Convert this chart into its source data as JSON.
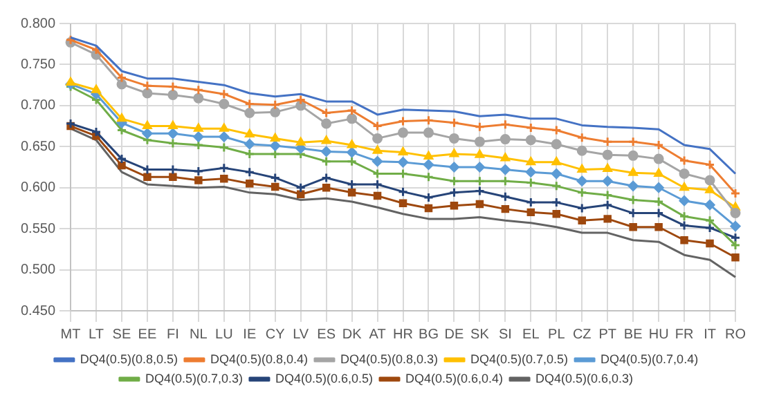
{
  "chart_data": {
    "type": "line",
    "categories": [
      "MT",
      "LT",
      "SE",
      "EE",
      "FI",
      "NL",
      "LU",
      "IE",
      "CY",
      "LV",
      "ES",
      "DK",
      "AT",
      "HR",
      "BG",
      "DE",
      "SK",
      "SI",
      "EL",
      "PL",
      "CZ",
      "PT",
      "BE",
      "HU",
      "FR",
      "IT",
      "RO"
    ],
    "ylim": [
      0.45,
      0.8
    ],
    "yticks": [
      {
        "value": 0.45,
        "label": "0.450"
      },
      {
        "value": 0.5,
        "label": "0.500"
      },
      {
        "value": 0.55,
        "label": "0.550"
      },
      {
        "value": 0.6,
        "label": "0.600"
      },
      {
        "value": 0.65,
        "label": "0.650"
      },
      {
        "value": 0.7,
        "label": "0.700"
      },
      {
        "value": 0.75,
        "label": "0.750"
      },
      {
        "value": 0.8,
        "label": "0.800"
      }
    ],
    "grid": true,
    "legend": "bottom",
    "line_style": "solid",
    "series": [
      {
        "name": "DQ4(0.5)(0.8,0.5)",
        "color": "#4472c4",
        "marker": "none",
        "values": [
          0.783,
          0.773,
          0.742,
          0.733,
          0.733,
          0.729,
          0.725,
          0.715,
          0.711,
          0.714,
          0.705,
          0.705,
          0.689,
          0.695,
          0.694,
          0.693,
          0.687,
          0.689,
          0.684,
          0.684,
          0.676,
          0.674,
          0.673,
          0.671,
          0.652,
          0.647,
          0.617
        ]
      },
      {
        "name": "DQ4(0.5)(0.8,0.4)",
        "color": "#ed7d31",
        "marker": "cross",
        "values": [
          0.78,
          0.768,
          0.734,
          0.724,
          0.723,
          0.719,
          0.714,
          0.702,
          0.701,
          0.707,
          0.691,
          0.694,
          0.675,
          0.681,
          0.682,
          0.679,
          0.674,
          0.677,
          0.673,
          0.67,
          0.661,
          0.656,
          0.656,
          0.652,
          0.633,
          0.628,
          0.593
        ]
      },
      {
        "name": "DQ4(0.5)(0.8,0.3)",
        "color": "#a5a5a5",
        "marker": "circle",
        "values": [
          0.777,
          0.762,
          0.726,
          0.715,
          0.713,
          0.709,
          0.702,
          0.691,
          0.692,
          0.7,
          0.678,
          0.684,
          0.66,
          0.667,
          0.667,
          0.66,
          0.656,
          0.659,
          0.658,
          0.653,
          0.645,
          0.64,
          0.639,
          0.635,
          0.617,
          0.609,
          0.569
        ]
      },
      {
        "name": "DQ4(0.5)(0.7,0.5)",
        "color": "#ffc000",
        "marker": "triangle",
        "values": [
          0.728,
          0.719,
          0.684,
          0.675,
          0.675,
          0.672,
          0.672,
          0.665,
          0.66,
          0.655,
          0.657,
          0.652,
          0.645,
          0.643,
          0.638,
          0.641,
          0.64,
          0.636,
          0.631,
          0.631,
          0.622,
          0.623,
          0.618,
          0.617,
          0.6,
          0.597,
          0.576
        ]
      },
      {
        "name": "DQ4(0.5)(0.7,0.4)",
        "color": "#5b9bd5",
        "marker": "diamond",
        "values": [
          0.726,
          0.714,
          0.679,
          0.666,
          0.666,
          0.662,
          0.662,
          0.653,
          0.651,
          0.648,
          0.644,
          0.643,
          0.632,
          0.631,
          0.628,
          0.625,
          0.625,
          0.622,
          0.619,
          0.617,
          0.608,
          0.608,
          0.602,
          0.6,
          0.584,
          0.579,
          0.553
        ]
      },
      {
        "name": "DQ4(0.5)(0.7,0.3)",
        "color": "#70ad47",
        "marker": "cross",
        "values": [
          0.723,
          0.707,
          0.67,
          0.658,
          0.654,
          0.652,
          0.649,
          0.641,
          0.641,
          0.641,
          0.632,
          0.632,
          0.617,
          0.617,
          0.613,
          0.608,
          0.608,
          0.608,
          0.606,
          0.602,
          0.594,
          0.591,
          0.585,
          0.583,
          0.565,
          0.56,
          0.53
        ]
      },
      {
        "name": "DQ4(0.5)(0.6,0.5)",
        "color": "#264478",
        "marker": "cross",
        "values": [
          0.678,
          0.668,
          0.635,
          0.622,
          0.622,
          0.62,
          0.624,
          0.619,
          0.612,
          0.6,
          0.612,
          0.604,
          0.604,
          0.595,
          0.588,
          0.594,
          0.596,
          0.589,
          0.582,
          0.582,
          0.575,
          0.579,
          0.569,
          0.569,
          0.554,
          0.551,
          0.539
        ]
      },
      {
        "name": "DQ4(0.5)(0.6,0.4)",
        "color": "#9e480e",
        "marker": "square",
        "values": [
          0.675,
          0.663,
          0.627,
          0.613,
          0.613,
          0.609,
          0.611,
          0.605,
          0.601,
          0.592,
          0.6,
          0.594,
          0.59,
          0.581,
          0.575,
          0.578,
          0.58,
          0.574,
          0.57,
          0.568,
          0.56,
          0.562,
          0.552,
          0.552,
          0.536,
          0.532,
          0.515
        ]
      },
      {
        "name": "DQ4(0.5)(0.6,0.3)",
        "color": "#636363",
        "marker": "none",
        "values": [
          0.672,
          0.658,
          0.619,
          0.604,
          0.602,
          0.6,
          0.601,
          0.594,
          0.592,
          0.585,
          0.587,
          0.583,
          0.576,
          0.568,
          0.562,
          0.562,
          0.564,
          0.56,
          0.557,
          0.552,
          0.545,
          0.545,
          0.536,
          0.534,
          0.518,
          0.512,
          0.491
        ]
      }
    ]
  }
}
